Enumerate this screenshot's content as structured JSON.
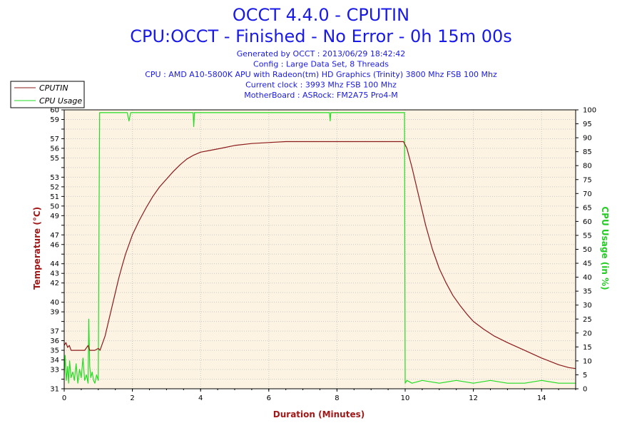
{
  "title": "OCCT 4.4.0 - CPUTIN",
  "subtitle": "CPU:OCCT - Finished - No Error - 0h 15m 00s",
  "info_lines": [
    "Generated by OCCT : 2013/06/29 18:42:42",
    "Config : Large Data Set, 8 Threads",
    "CPU : AMD A10-5800K APU with Radeon(tm) HD Graphics (Trinity) 3800 Mhz FSB 100 Mhz",
    "Current clock : 3993 Mhz FSB 100 Mhz",
    "MotherBoard : ASRock: FM2A75 Pro4-M"
  ],
  "colors": {
    "temp": "#8b1a1a",
    "usage": "#22dd22",
    "plot_bg": "#fdf3e3",
    "grid": "#c8c8c8"
  },
  "chart_data": {
    "type": "line",
    "xlabel": "Duration (Minutes)",
    "ylabel": "Temperature (°C)",
    "y2label": "CPU Usage (in %)",
    "xlim": [
      0,
      15
    ],
    "ylim": [
      31,
      60
    ],
    "y2lim": [
      0,
      100
    ],
    "x_ticks": [
      0,
      2,
      4,
      6,
      8,
      10,
      12,
      14
    ],
    "y_ticks": [
      31,
      32,
      33,
      34,
      35,
      36,
      37,
      38,
      39,
      40,
      41,
      42,
      43,
      44,
      45,
      46,
      47,
      48,
      49,
      50,
      51,
      52,
      53,
      54,
      55,
      56,
      57,
      58,
      59,
      60
    ],
    "y_tick_labels": [
      "31",
      "",
      "33",
      "34",
      "35",
      "36",
      "37",
      "",
      "39",
      "40",
      "",
      "42",
      "43",
      "44",
      "",
      "46",
      "47",
      "",
      "49",
      "50",
      "51",
      "52",
      "53",
      "",
      "55",
      "56",
      "57",
      "",
      "59",
      "60"
    ],
    "y2_ticks": [
      0,
      5,
      10,
      15,
      20,
      25,
      30,
      35,
      40,
      45,
      50,
      55,
      60,
      65,
      70,
      75,
      80,
      85,
      90,
      95,
      100
    ],
    "legend": "top-left",
    "grid": true,
    "series": [
      {
        "name": "CPUTIN",
        "axis": "left",
        "x": [
          0,
          0.05,
          0.1,
          0.15,
          0.2,
          0.6,
          0.7,
          0.75,
          0.8,
          0.9,
          1.0,
          1.05,
          1.1,
          1.2,
          1.3,
          1.4,
          1.5,
          1.6,
          1.7,
          1.8,
          1.9,
          2.0,
          2.2,
          2.4,
          2.6,
          2.8,
          3.0,
          3.2,
          3.4,
          3.6,
          3.8,
          4.0,
          4.3,
          4.6,
          5.0,
          5.5,
          6.0,
          6.5,
          7.0,
          7.5,
          8.0,
          8.5,
          9.0,
          9.5,
          9.95,
          10.05,
          10.2,
          10.4,
          10.6,
          10.8,
          11.0,
          11.2,
          11.4,
          11.6,
          11.8,
          12.0,
          12.3,
          12.6,
          13.0,
          13.5,
          14.0,
          14.5,
          14.8,
          15.0
        ],
        "y": [
          35.5,
          35.8,
          35.3,
          35.5,
          35.0,
          35.0,
          35.5,
          35.0,
          35.0,
          35.0,
          35.2,
          35.0,
          35.5,
          36.5,
          38.0,
          39.5,
          41.0,
          42.5,
          43.8,
          45.0,
          46.0,
          47.0,
          48.5,
          49.8,
          51.0,
          52.0,
          52.8,
          53.6,
          54.3,
          54.9,
          55.3,
          55.6,
          55.8,
          56.0,
          56.3,
          56.5,
          56.6,
          56.7,
          56.7,
          56.7,
          56.7,
          56.7,
          56.7,
          56.7,
          56.7,
          56.0,
          54.0,
          51.0,
          48.0,
          45.5,
          43.5,
          42.0,
          40.7,
          39.7,
          38.8,
          38.0,
          37.2,
          36.5,
          35.8,
          35.0,
          34.2,
          33.5,
          33.2,
          33.1
        ]
      },
      {
        "name": "CPU Usage",
        "axis": "right",
        "x": [
          0,
          0.03,
          0.06,
          0.1,
          0.13,
          0.16,
          0.2,
          0.25,
          0.3,
          0.35,
          0.4,
          0.45,
          0.5,
          0.55,
          0.6,
          0.65,
          0.7,
          0.72,
          0.75,
          0.78,
          0.82,
          0.86,
          0.9,
          0.95,
          1.0,
          1.02,
          1.04,
          1.1,
          1.5,
          1.85,
          1.9,
          1.95,
          2.0,
          3.0,
          3.78,
          3.8,
          3.82,
          4.0,
          6.0,
          7.0,
          7.78,
          7.8,
          7.82,
          8.0,
          9.98,
          10.0,
          10.05,
          10.2,
          10.5,
          11.0,
          11.5,
          12.0,
          12.5,
          13.0,
          13.5,
          14.0,
          14.5,
          15.0
        ],
        "y": [
          5,
          12,
          3,
          8,
          2,
          10,
          4,
          6,
          3,
          9,
          2,
          7,
          4,
          11,
          3,
          5,
          2,
          25,
          8,
          4,
          6,
          3,
          2,
          5,
          3,
          60,
          99,
          99,
          99,
          99,
          96,
          99,
          99,
          99,
          99,
          94,
          99,
          99,
          99,
          99,
          99,
          96,
          99,
          99,
          99,
          2,
          3,
          2,
          3,
          2,
          3,
          2,
          3,
          2,
          2,
          3,
          2,
          2
        ]
      }
    ]
  }
}
